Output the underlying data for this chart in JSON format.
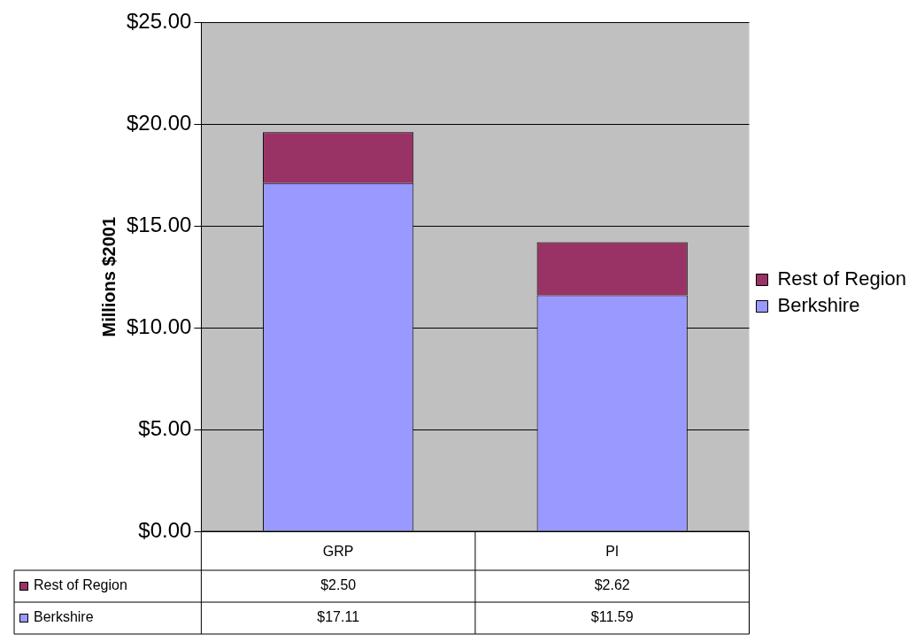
{
  "chart_data": {
    "type": "bar",
    "stacked": true,
    "ylabel": "Millions $2001",
    "categories": [
      "GRP",
      "PI"
    ],
    "series": [
      {
        "name": "Berkshire",
        "color": "#9999ff",
        "values": [
          17.11,
          11.59
        ],
        "value_labels": [
          "$17.11",
          "$11.59"
        ]
      },
      {
        "name": "Rest of Region",
        "color": "#993366",
        "values": [
          2.5,
          2.62
        ],
        "value_labels": [
          "$2.50",
          "$2.62"
        ]
      }
    ],
    "ylim": [
      0,
      25
    ],
    "yticks": [
      {
        "value": 0,
        "label": "$0.00"
      },
      {
        "value": 5,
        "label": "$5.00"
      },
      {
        "value": 10,
        "label": "$10.00"
      },
      {
        "value": 15,
        "label": "$15.00"
      },
      {
        "value": 20,
        "label": "$20.00"
      },
      {
        "value": 25,
        "label": "$25.00"
      }
    ],
    "grid": "y",
    "legend": "right"
  }
}
